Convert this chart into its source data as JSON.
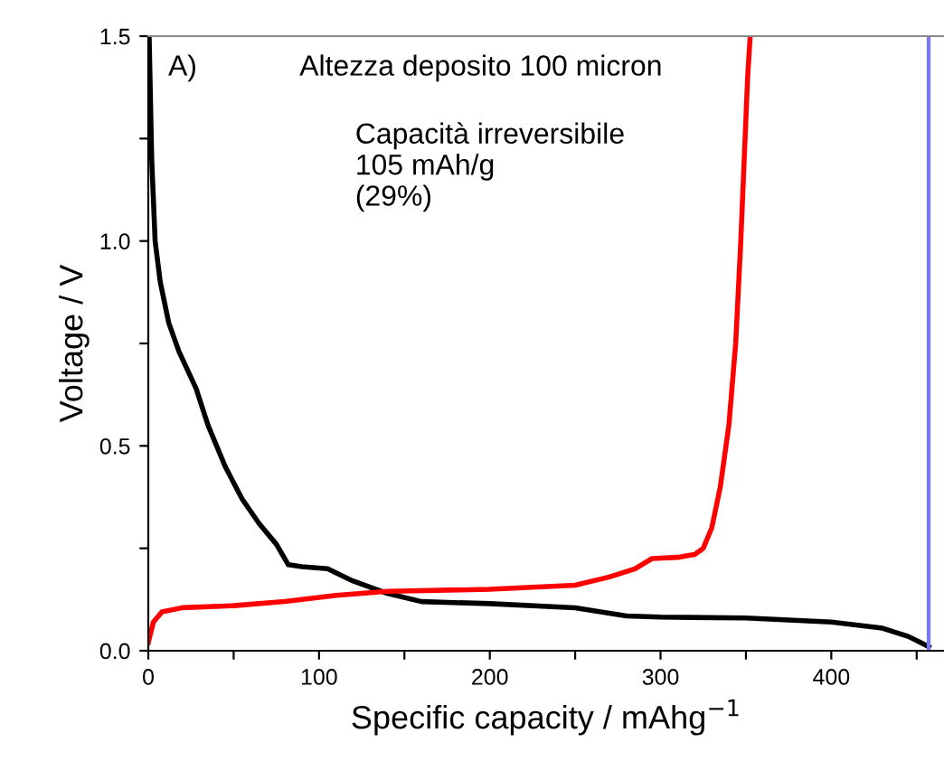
{
  "chart_data": {
    "type": "line",
    "xlabel": "Specific capacity / mAhg$^{−1}$",
    "ylabel": "Voltage / V",
    "annotations": [
      "A)",
      "Altezza deposito 100 micron",
      "Capacità irreversibile\n105 mAh/g\n(29%)"
    ],
    "xlim": [
      0,
      466
    ],
    "ylim": [
      0,
      1.5
    ],
    "xticks": [
      0,
      {
        "value": 50,
        "label": null
      },
      100,
      {
        "value": 150,
        "label": null
      },
      200,
      {
        "value": 250,
        "label": null
      },
      300,
      {
        "value": 350,
        "label": null
      },
      400,
      {
        "value": 450,
        "label": null
      }
    ],
    "yticks": [
      {
        "value": 0,
        "label": "0.0"
      },
      {
        "value": 0.25,
        "label": null
      },
      0.5,
      {
        "value": 0.75,
        "label": null
      },
      {
        "value": 1,
        "label": "1.0"
      },
      {
        "value": 1.25,
        "label": null
      },
      1.5
    ],
    "grid": false,
    "legend": false,
    "marker": "none",
    "line_style": "solid",
    "series": [
      {
        "color": "#000000",
        "x": [
          0.5,
          2,
          4,
          7,
          12,
          18,
          28,
          35,
          45,
          55,
          65,
          75,
          82,
          90,
          105,
          120,
          140,
          160,
          200,
          250,
          280,
          300,
          350,
          400,
          430,
          445,
          457
        ],
        "values": [
          1.5,
          1.2,
          1.0,
          0.9,
          0.8,
          0.73,
          0.64,
          0.55,
          0.45,
          0.37,
          0.31,
          0.26,
          0.21,
          0.205,
          0.2,
          0.17,
          0.14,
          0.12,
          0.115,
          0.105,
          0.085,
          0.082,
          0.08,
          0.07,
          0.055,
          0.035,
          0.01
        ]
      },
      {
        "color": "#ff0000",
        "x": [
          0,
          3,
          8,
          20,
          50,
          80,
          110,
          140,
          200,
          250,
          270,
          285,
          295,
          310,
          320,
          325,
          330,
          335,
          340,
          344,
          347,
          349,
          351,
          352.5
        ],
        "values": [
          0.02,
          0.07,
          0.095,
          0.105,
          0.11,
          0.12,
          0.135,
          0.145,
          0.15,
          0.16,
          0.18,
          0.2,
          0.225,
          0.228,
          0.235,
          0.25,
          0.3,
          0.4,
          0.55,
          0.75,
          1.0,
          1.2,
          1.4,
          1.5
        ]
      }
    ],
    "ref_lines": [
      {
        "axis": "x",
        "value": 457,
        "color": "#7777ff"
      }
    ]
  }
}
